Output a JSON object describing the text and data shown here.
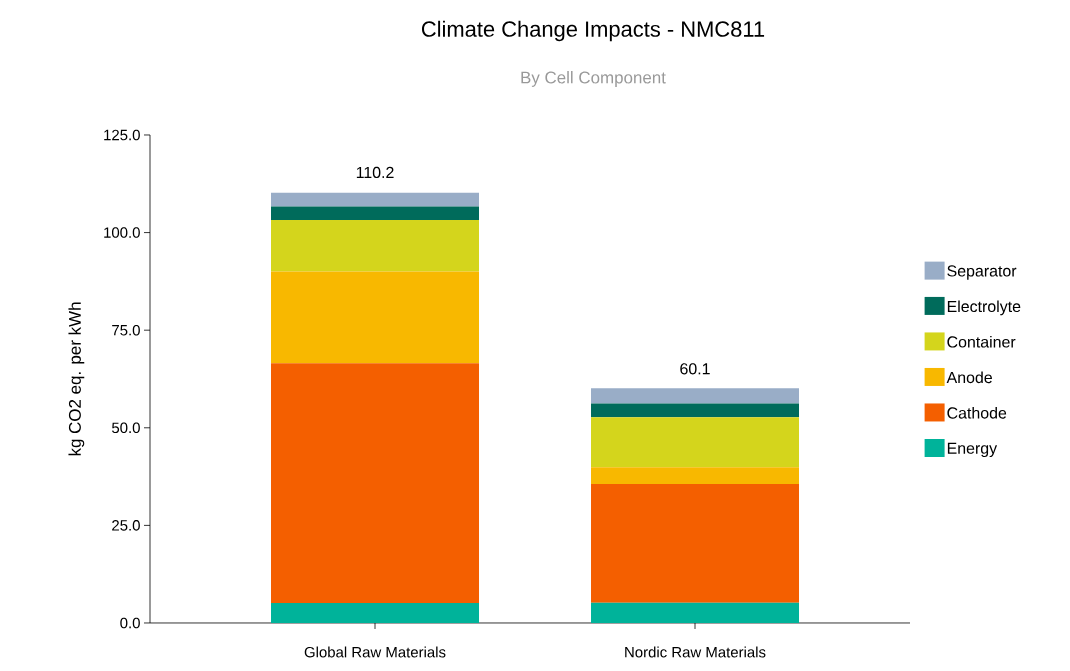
{
  "chart_data": {
    "type": "bar",
    "title": "Climate Change Impacts - NMC811",
    "subtitle": "By Cell Component",
    "ylabel": "kg CO2 eq. per kWh",
    "categories": [
      "Global Raw Materials",
      "Nordic Raw Materials"
    ],
    "stacked": true,
    "series": [
      {
        "name": "Energy",
        "color": "#00b39a",
        "values": [
          5.1,
          5.2
        ]
      },
      {
        "name": "Cathode",
        "color": "#f45f00",
        "values": [
          61.4,
          30.4
        ]
      },
      {
        "name": "Anode",
        "color": "#f8b800",
        "values": [
          23.5,
          4.3
        ]
      },
      {
        "name": "Container",
        "color": "#d4d51c",
        "values": [
          13.2,
          12.8
        ]
      },
      {
        "name": "Electrolyte",
        "color": "#006b5b",
        "values": [
          3.5,
          3.5
        ]
      },
      {
        "name": "Separator",
        "color": "#99adc7",
        "values": [
          3.5,
          3.9
        ]
      }
    ],
    "totals": [
      "110.2",
      "60.1"
    ],
    "ylim": [
      0,
      125
    ],
    "yticks": [
      {
        "value": 0,
        "label": "0.0"
      },
      {
        "value": 25,
        "label": "25.0"
      },
      {
        "value": 50,
        "label": "50.0"
      },
      {
        "value": 75,
        "label": "75.0"
      },
      {
        "value": 100,
        "label": "100.0"
      },
      {
        "value": 125,
        "label": "125.0"
      }
    ],
    "grid": false,
    "legend": "right"
  }
}
